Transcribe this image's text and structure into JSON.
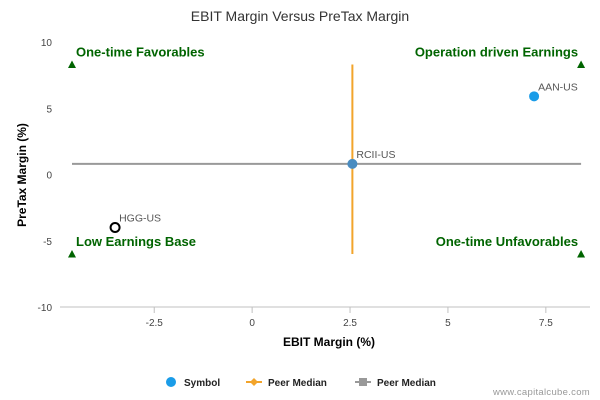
{
  "chart_data": {
    "type": "scatter",
    "title": "EBIT Margin Versus PreTax Margin",
    "xlabel": "EBIT Margin (%)",
    "ylabel": "PreTax Margin (%)",
    "xlim": [
      -4.6,
      8.5
    ],
    "ylim": [
      -10,
      10
    ],
    "x_ticks": [
      -2.5,
      0,
      2.5,
      5,
      7.5
    ],
    "x_tick_labels": [
      "-2.5",
      "0",
      "2.5",
      "5",
      "7.5"
    ],
    "y_ticks": [
      10,
      5,
      0,
      -5,
      -10
    ],
    "y_tick_labels": [
      "10",
      "5",
      "0",
      "-5",
      "-10"
    ],
    "points": [
      {
        "label": "AAN-US",
        "x": 7.2,
        "y": 5.9,
        "style": "filled",
        "color": "#1a9ce8"
      },
      {
        "label": "RCII-US",
        "x": 2.56,
        "y": 0.8,
        "style": "filled",
        "color": "#4a8cc0"
      },
      {
        "label": "HGG-US",
        "x": -3.5,
        "y": -4.0,
        "style": "hollow",
        "color": "#000000"
      }
    ],
    "peer_median_x": {
      "value": 2.56,
      "y_range": [
        -6,
        8.3
      ],
      "color": "#f2a42b"
    },
    "peer_median_y": {
      "value": 0.8,
      "x_range": [
        -4.6,
        8.4
      ],
      "color": "#999999"
    },
    "quadrants": [
      {
        "label": "One-time Favorables",
        "position": "top-left",
        "marker_x": -4.6,
        "marker_y": 8.3
      },
      {
        "label": "Operation driven Earnings",
        "position": "top-right",
        "marker_x": 8.4,
        "marker_y": 8.3
      },
      {
        "label": "Low Earnings Base",
        "position": "bottom-left",
        "marker_x": -4.6,
        "marker_y": -6.0
      },
      {
        "label": "One-time Unfavorables",
        "position": "bottom-right",
        "marker_x": 8.4,
        "marker_y": -6.0
      }
    ],
    "quadrant_color": "#006400",
    "legend": {
      "position": "bottom-center",
      "items": [
        {
          "name": "Symbol",
          "kind": "dot",
          "color": "#1a9ce8"
        },
        {
          "name": "Peer Median",
          "kind": "line-diamond",
          "color": "#f2a42b"
        },
        {
          "name": "Peer Median",
          "kind": "line-square",
          "color": "#999999"
        }
      ]
    },
    "grid": false
  },
  "watermark": "www.capitalcube.com"
}
